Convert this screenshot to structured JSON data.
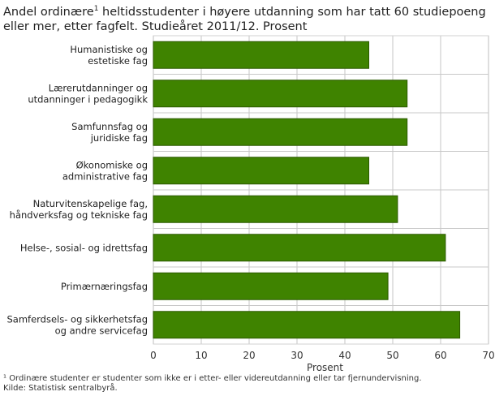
{
  "title_part1": "Andel ordinære",
  "title_sup": "1",
  "title_part2": " heltidsstudenter i høyere utdanning som har tatt 60 studiepoeng eller mer, etter fagfelt. Studieåret 2011/12. Prosent",
  "footnote": "¹ Ordinære studenter er studenter som ikke er i etter- eller videreutdanning eller tar fjernundervisning.",
  "source": "Kilde: Statistisk sentralbyrå.",
  "chart_data": {
    "type": "bar",
    "orientation": "horizontal",
    "categories": [
      [
        "Humanistiske og",
        "estetiske fag"
      ],
      [
        "Lærerutdanninger og",
        "utdanninger i pedagogikk"
      ],
      [
        "Samfunnsfag og",
        "juridiske fag"
      ],
      [
        "Økonomiske og",
        "administrative fag"
      ],
      [
        "Naturvitenskapelige fag,",
        "håndverksfag og tekniske fag"
      ],
      [
        "Helse-, sosial- og idrettsfag"
      ],
      [
        "Primærnæringsfag"
      ],
      [
        "Samferdsels- og sikkerhetsfag",
        "og andre servicefag"
      ]
    ],
    "values": [
      45,
      53,
      53,
      45,
      51,
      61,
      49,
      64
    ],
    "xlabel": "Prosent",
    "xlim": [
      0,
      70
    ],
    "xticks": [
      0,
      10,
      20,
      30,
      40,
      50,
      60,
      70
    ],
    "grid": true,
    "bar_color": "#3f8300",
    "bar_border": "#2c5a00"
  }
}
